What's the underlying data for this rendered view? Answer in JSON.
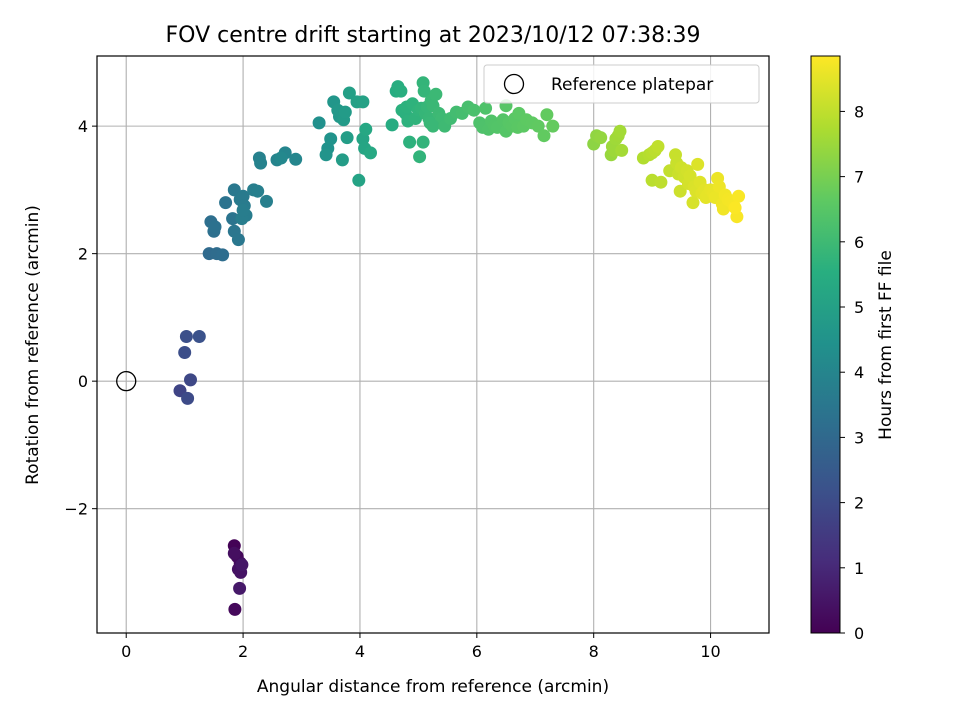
{
  "chart_data": {
    "type": "scatter",
    "title": "FOV centre drift starting at 2023/10/12 07:38:39",
    "xlabel": "Angular distance from reference (arcmin)",
    "ylabel": "Rotation from reference (arcmin)",
    "xlim": [
      -0.5,
      11.0
    ],
    "ylim": [
      -3.95,
      5.1
    ],
    "x_ticks": [
      0,
      2,
      4,
      6,
      8,
      10
    ],
    "y_ticks": [
      -2,
      0,
      2,
      4
    ],
    "grid": true,
    "colormap": "viridis",
    "colorbar": {
      "label": "Hours from first FF file",
      "range": [
        0,
        8.85
      ],
      "ticks": [
        0,
        1,
        2,
        3,
        4,
        5,
        6,
        7,
        8
      ]
    },
    "legend": {
      "position": "top-right",
      "entries": [
        "Reference platepar"
      ]
    },
    "reference_point": {
      "x": 0,
      "y": 0,
      "label": "Reference platepar"
    },
    "points": [
      {
        "x": 1.85,
        "y": -2.58,
        "c": 0.05
      },
      {
        "x": 1.9,
        "y": -2.75,
        "c": 0.15
      },
      {
        "x": 1.95,
        "y": -2.85,
        "c": 0.25
      },
      {
        "x": 1.85,
        "y": -2.7,
        "c": 0.35
      },
      {
        "x": 1.92,
        "y": -2.95,
        "c": 0.4
      },
      {
        "x": 1.96,
        "y": -3.0,
        "c": 0.45
      },
      {
        "x": 1.98,
        "y": -2.88,
        "c": 0.55
      },
      {
        "x": 1.94,
        "y": -3.25,
        "c": 0.6
      },
      {
        "x": 1.86,
        "y": -3.58,
        "c": 0.2
      },
      {
        "x": 0.92,
        "y": -0.15,
        "c": 1.8
      },
      {
        "x": 1.1,
        "y": 0.02,
        "c": 1.9
      },
      {
        "x": 1.05,
        "y": -0.27,
        "c": 2.0
      },
      {
        "x": 1.0,
        "y": 0.45,
        "c": 2.1
      },
      {
        "x": 1.03,
        "y": 0.7,
        "c": 2.15
      },
      {
        "x": 1.25,
        "y": 0.7,
        "c": 2.2
      },
      {
        "x": 1.42,
        "y": 2.0,
        "c": 3.05
      },
      {
        "x": 1.55,
        "y": 2.0,
        "c": 3.1
      },
      {
        "x": 1.65,
        "y": 1.98,
        "c": 3.15
      },
      {
        "x": 1.45,
        "y": 2.5,
        "c": 3.2
      },
      {
        "x": 1.5,
        "y": 2.35,
        "c": 3.25
      },
      {
        "x": 1.52,
        "y": 2.42,
        "c": 3.3
      },
      {
        "x": 1.7,
        "y": 2.8,
        "c": 3.35
      },
      {
        "x": 1.82,
        "y": 2.55,
        "c": 3.4
      },
      {
        "x": 1.85,
        "y": 2.35,
        "c": 3.45
      },
      {
        "x": 1.92,
        "y": 2.22,
        "c": 3.5
      },
      {
        "x": 1.85,
        "y": 3.0,
        "c": 3.55
      },
      {
        "x": 1.95,
        "y": 2.85,
        "c": 3.6
      },
      {
        "x": 2.0,
        "y": 2.9,
        "c": 3.62
      },
      {
        "x": 2.02,
        "y": 2.75,
        "c": 3.65
      },
      {
        "x": 2.05,
        "y": 2.6,
        "c": 3.68
      },
      {
        "x": 1.98,
        "y": 2.55,
        "c": 3.7
      },
      {
        "x": 2.0,
        "y": 2.68,
        "c": 3.72
      },
      {
        "x": 2.18,
        "y": 3.0,
        "c": 3.75
      },
      {
        "x": 2.25,
        "y": 2.98,
        "c": 3.78
      },
      {
        "x": 2.4,
        "y": 2.82,
        "c": 3.8
      },
      {
        "x": 2.28,
        "y": 3.5,
        "c": 3.85
      },
      {
        "x": 2.3,
        "y": 3.42,
        "c": 3.9
      },
      {
        "x": 2.58,
        "y": 3.47,
        "c": 3.95
      },
      {
        "x": 2.72,
        "y": 3.58,
        "c": 4.0
      },
      {
        "x": 2.9,
        "y": 3.48,
        "c": 4.05
      },
      {
        "x": 2.65,
        "y": 3.5,
        "c": 4.1
      },
      {
        "x": 3.3,
        "y": 4.05,
        "c": 4.4
      },
      {
        "x": 3.45,
        "y": 3.65,
        "c": 4.45
      },
      {
        "x": 3.5,
        "y": 3.8,
        "c": 4.5
      },
      {
        "x": 3.42,
        "y": 3.55,
        "c": 4.55
      },
      {
        "x": 3.55,
        "y": 4.38,
        "c": 4.6
      },
      {
        "x": 3.65,
        "y": 4.15,
        "c": 4.65
      },
      {
        "x": 3.62,
        "y": 4.25,
        "c": 4.7
      },
      {
        "x": 3.72,
        "y": 4.1,
        "c": 4.75
      },
      {
        "x": 3.75,
        "y": 4.22,
        "c": 4.8
      },
      {
        "x": 3.7,
        "y": 3.47,
        "c": 4.85
      },
      {
        "x": 3.78,
        "y": 3.82,
        "c": 4.9
      },
      {
        "x": 3.82,
        "y": 4.52,
        "c": 4.95
      },
      {
        "x": 3.95,
        "y": 4.38,
        "c": 5.0
      },
      {
        "x": 4.05,
        "y": 4.38,
        "c": 5.05
      },
      {
        "x": 3.98,
        "y": 3.15,
        "c": 5.1
      },
      {
        "x": 4.05,
        "y": 3.8,
        "c": 5.15
      },
      {
        "x": 4.08,
        "y": 3.65,
        "c": 5.2
      },
      {
        "x": 4.1,
        "y": 3.95,
        "c": 5.25
      },
      {
        "x": 4.18,
        "y": 3.58,
        "c": 5.3
      },
      {
        "x": 4.55,
        "y": 4.02,
        "c": 5.4
      },
      {
        "x": 4.62,
        "y": 4.55,
        "c": 5.45
      },
      {
        "x": 4.65,
        "y": 4.62,
        "c": 5.5
      },
      {
        "x": 4.7,
        "y": 4.55,
        "c": 5.55
      },
      {
        "x": 4.72,
        "y": 4.25,
        "c": 5.6
      },
      {
        "x": 4.78,
        "y": 4.2,
        "c": 5.62
      },
      {
        "x": 4.8,
        "y": 4.3,
        "c": 5.64
      },
      {
        "x": 4.82,
        "y": 4.08,
        "c": 5.66
      },
      {
        "x": 4.9,
        "y": 4.35,
        "c": 5.68
      },
      {
        "x": 4.95,
        "y": 4.12,
        "c": 5.7
      },
      {
        "x": 5.0,
        "y": 4.25,
        "c": 5.72
      },
      {
        "x": 5.02,
        "y": 3.52,
        "c": 5.74
      },
      {
        "x": 5.05,
        "y": 4.28,
        "c": 5.76
      },
      {
        "x": 5.08,
        "y": 4.68,
        "c": 5.78
      },
      {
        "x": 5.1,
        "y": 4.55,
        "c": 5.8
      },
      {
        "x": 5.12,
        "y": 4.2,
        "c": 5.82
      },
      {
        "x": 5.15,
        "y": 4.3,
        "c": 5.84
      },
      {
        "x": 5.18,
        "y": 4.12,
        "c": 5.86
      },
      {
        "x": 5.2,
        "y": 4.05,
        "c": 5.88
      },
      {
        "x": 5.22,
        "y": 4.4,
        "c": 5.9
      },
      {
        "x": 5.25,
        "y": 4.32,
        "c": 5.92
      },
      {
        "x": 5.3,
        "y": 4.5,
        "c": 5.94
      },
      {
        "x": 5.35,
        "y": 4.2,
        "c": 5.96
      },
      {
        "x": 5.4,
        "y": 4.12,
        "c": 5.98
      },
      {
        "x": 5.08,
        "y": 3.75,
        "c": 5.75
      },
      {
        "x": 4.85,
        "y": 3.75,
        "c": 5.65
      },
      {
        "x": 5.25,
        "y": 4.0,
        "c": 5.9
      },
      {
        "x": 5.45,
        "y": 4.0,
        "c": 6.0
      },
      {
        "x": 5.55,
        "y": 4.12,
        "c": 6.05
      },
      {
        "x": 5.65,
        "y": 4.22,
        "c": 6.1
      },
      {
        "x": 5.75,
        "y": 4.2,
        "c": 6.15
      },
      {
        "x": 5.85,
        "y": 4.3,
        "c": 6.2
      },
      {
        "x": 5.95,
        "y": 4.25,
        "c": 6.25
      },
      {
        "x": 6.05,
        "y": 4.05,
        "c": 6.3
      },
      {
        "x": 6.1,
        "y": 3.98,
        "c": 6.32
      },
      {
        "x": 6.15,
        "y": 4.28,
        "c": 6.34
      },
      {
        "x": 6.2,
        "y": 3.95,
        "c": 6.36
      },
      {
        "x": 6.25,
        "y": 4.08,
        "c": 6.38
      },
      {
        "x": 6.3,
        "y": 4.0,
        "c": 6.4
      },
      {
        "x": 6.35,
        "y": 3.98,
        "c": 6.42
      },
      {
        "x": 6.45,
        "y": 4.1,
        "c": 6.44
      },
      {
        "x": 6.5,
        "y": 3.92,
        "c": 6.46
      },
      {
        "x": 6.5,
        "y": 4.32,
        "c": 6.48
      },
      {
        "x": 6.55,
        "y": 4.05,
        "c": 6.5
      },
      {
        "x": 6.6,
        "y": 4.0,
        "c": 6.52
      },
      {
        "x": 6.65,
        "y": 4.12,
        "c": 6.54
      },
      {
        "x": 6.7,
        "y": 3.98,
        "c": 6.56
      },
      {
        "x": 6.72,
        "y": 4.2,
        "c": 6.58
      },
      {
        "x": 6.8,
        "y": 4.0,
        "c": 6.6
      },
      {
        "x": 6.85,
        "y": 4.1,
        "c": 6.62
      },
      {
        "x": 6.95,
        "y": 4.05,
        "c": 6.64
      },
      {
        "x": 7.05,
        "y": 4.0,
        "c": 6.66
      },
      {
        "x": 7.15,
        "y": 3.85,
        "c": 6.68
      },
      {
        "x": 7.2,
        "y": 4.18,
        "c": 6.7
      },
      {
        "x": 7.3,
        "y": 4.0,
        "c": 6.72
      },
      {
        "x": 8.0,
        "y": 3.72,
        "c": 7.3
      },
      {
        "x": 8.05,
        "y": 3.85,
        "c": 7.35
      },
      {
        "x": 8.12,
        "y": 3.82,
        "c": 7.4
      },
      {
        "x": 8.3,
        "y": 3.55,
        "c": 7.45
      },
      {
        "x": 8.32,
        "y": 3.68,
        "c": 7.5
      },
      {
        "x": 8.35,
        "y": 3.62,
        "c": 7.52
      },
      {
        "x": 8.38,
        "y": 3.8,
        "c": 7.55
      },
      {
        "x": 8.42,
        "y": 3.85,
        "c": 7.58
      },
      {
        "x": 8.45,
        "y": 3.92,
        "c": 7.6
      },
      {
        "x": 8.48,
        "y": 3.62,
        "c": 7.62
      },
      {
        "x": 8.85,
        "y": 3.5,
        "c": 7.8
      },
      {
        "x": 8.95,
        "y": 3.55,
        "c": 7.85
      },
      {
        "x": 9.0,
        "y": 3.58,
        "c": 7.9
      },
      {
        "x": 9.05,
        "y": 3.62,
        "c": 7.95
      },
      {
        "x": 9.1,
        "y": 3.68,
        "c": 8.0
      },
      {
        "x": 9.0,
        "y": 3.15,
        "c": 7.92
      },
      {
        "x": 9.15,
        "y": 3.12,
        "c": 7.98
      },
      {
        "x": 9.3,
        "y": 3.3,
        "c": 8.05
      },
      {
        "x": 9.4,
        "y": 3.55,
        "c": 8.1
      },
      {
        "x": 9.42,
        "y": 3.42,
        "c": 8.12
      },
      {
        "x": 9.45,
        "y": 3.25,
        "c": 8.15
      },
      {
        "x": 9.48,
        "y": 2.98,
        "c": 8.18
      },
      {
        "x": 9.5,
        "y": 3.35,
        "c": 8.2
      },
      {
        "x": 9.55,
        "y": 3.2,
        "c": 8.22
      },
      {
        "x": 9.6,
        "y": 3.3,
        "c": 8.25
      },
      {
        "x": 9.62,
        "y": 3.1,
        "c": 8.28
      },
      {
        "x": 9.65,
        "y": 3.22,
        "c": 8.3
      },
      {
        "x": 9.7,
        "y": 2.8,
        "c": 8.32
      },
      {
        "x": 9.72,
        "y": 3.05,
        "c": 8.35
      },
      {
        "x": 9.75,
        "y": 2.98,
        "c": 8.38
      },
      {
        "x": 9.78,
        "y": 3.4,
        "c": 8.4
      },
      {
        "x": 9.82,
        "y": 3.12,
        "c": 8.42
      },
      {
        "x": 9.85,
        "y": 2.95,
        "c": 8.45
      },
      {
        "x": 9.9,
        "y": 3.0,
        "c": 8.48
      },
      {
        "x": 9.92,
        "y": 2.88,
        "c": 8.5
      },
      {
        "x": 9.95,
        "y": 2.92,
        "c": 8.52
      },
      {
        "x": 10.0,
        "y": 3.0,
        "c": 8.55
      },
      {
        "x": 10.05,
        "y": 2.95,
        "c": 8.58
      },
      {
        "x": 10.08,
        "y": 2.88,
        "c": 8.6
      },
      {
        "x": 10.12,
        "y": 3.18,
        "c": 8.62
      },
      {
        "x": 10.15,
        "y": 3.05,
        "c": 8.64
      },
      {
        "x": 10.2,
        "y": 2.78,
        "c": 8.66
      },
      {
        "x": 10.22,
        "y": 2.7,
        "c": 8.68
      },
      {
        "x": 10.25,
        "y": 2.92,
        "c": 8.7
      },
      {
        "x": 10.3,
        "y": 2.85,
        "c": 8.72
      },
      {
        "x": 10.35,
        "y": 2.82,
        "c": 8.74
      },
      {
        "x": 10.4,
        "y": 2.75,
        "c": 8.76
      },
      {
        "x": 10.45,
        "y": 2.58,
        "c": 8.78
      },
      {
        "x": 10.48,
        "y": 2.9,
        "c": 8.8
      },
      {
        "x": 10.42,
        "y": 2.72,
        "c": 8.82
      }
    ]
  }
}
